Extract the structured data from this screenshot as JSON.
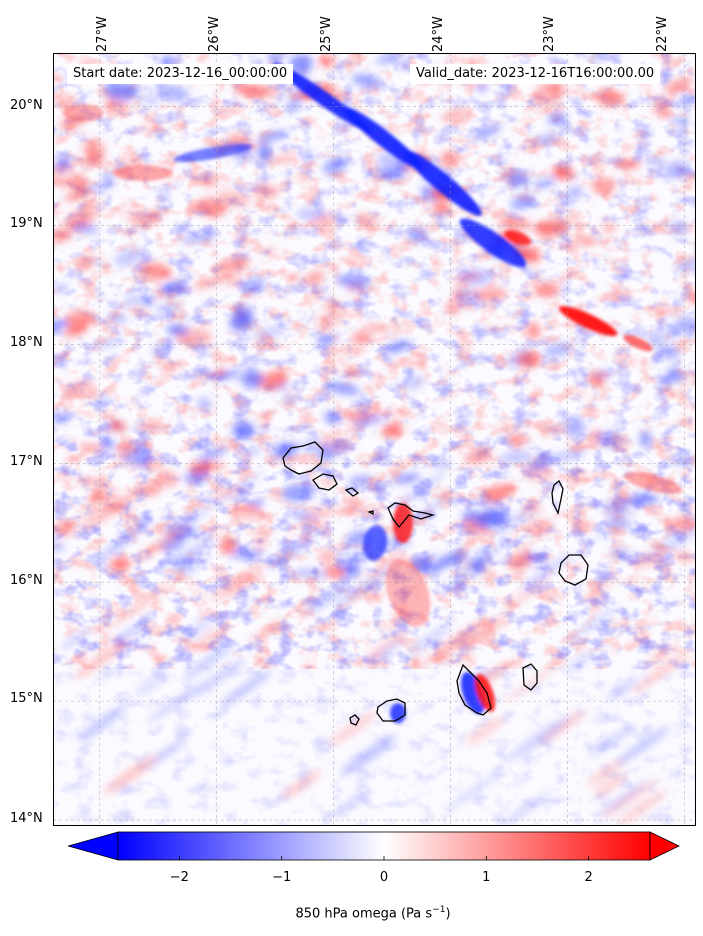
{
  "map": {
    "title_start": "Start date: 2023-12-16_00:00:00",
    "title_valid": "Valid_date: 2023-12-16T16:00:00.00",
    "lon_labels": [
      "27°W",
      "26°W",
      "25°W",
      "24°W",
      "23°W",
      "22°W"
    ],
    "lat_labels": [
      "20°N",
      "19°N",
      "18°N",
      "17°N",
      "16°N",
      "15°N",
      "14°N"
    ],
    "lon_range": [
      -27.4,
      -21.9
    ],
    "lat_range": [
      13.95,
      20.45
    ],
    "gridlines": true,
    "coastline_color": "#000000"
  },
  "colorbar": {
    "label": "850 hPa omega (Pa s",
    "label_sup": "−1",
    "label_close": ")",
    "ticks": [
      "−2",
      "−1",
      "0",
      "1",
      "2"
    ],
    "tick_values": [
      -2,
      -1,
      0,
      1,
      2
    ],
    "vmin": -2.6,
    "vmax": 2.6,
    "cmap": "bwr",
    "extend": "both"
  },
  "chart_data": {
    "type": "heatmap",
    "variable": "850 hPa omega",
    "units": "Pa s^-1",
    "colormap": "bwr",
    "range": [
      -2.6,
      2.6
    ]
  }
}
